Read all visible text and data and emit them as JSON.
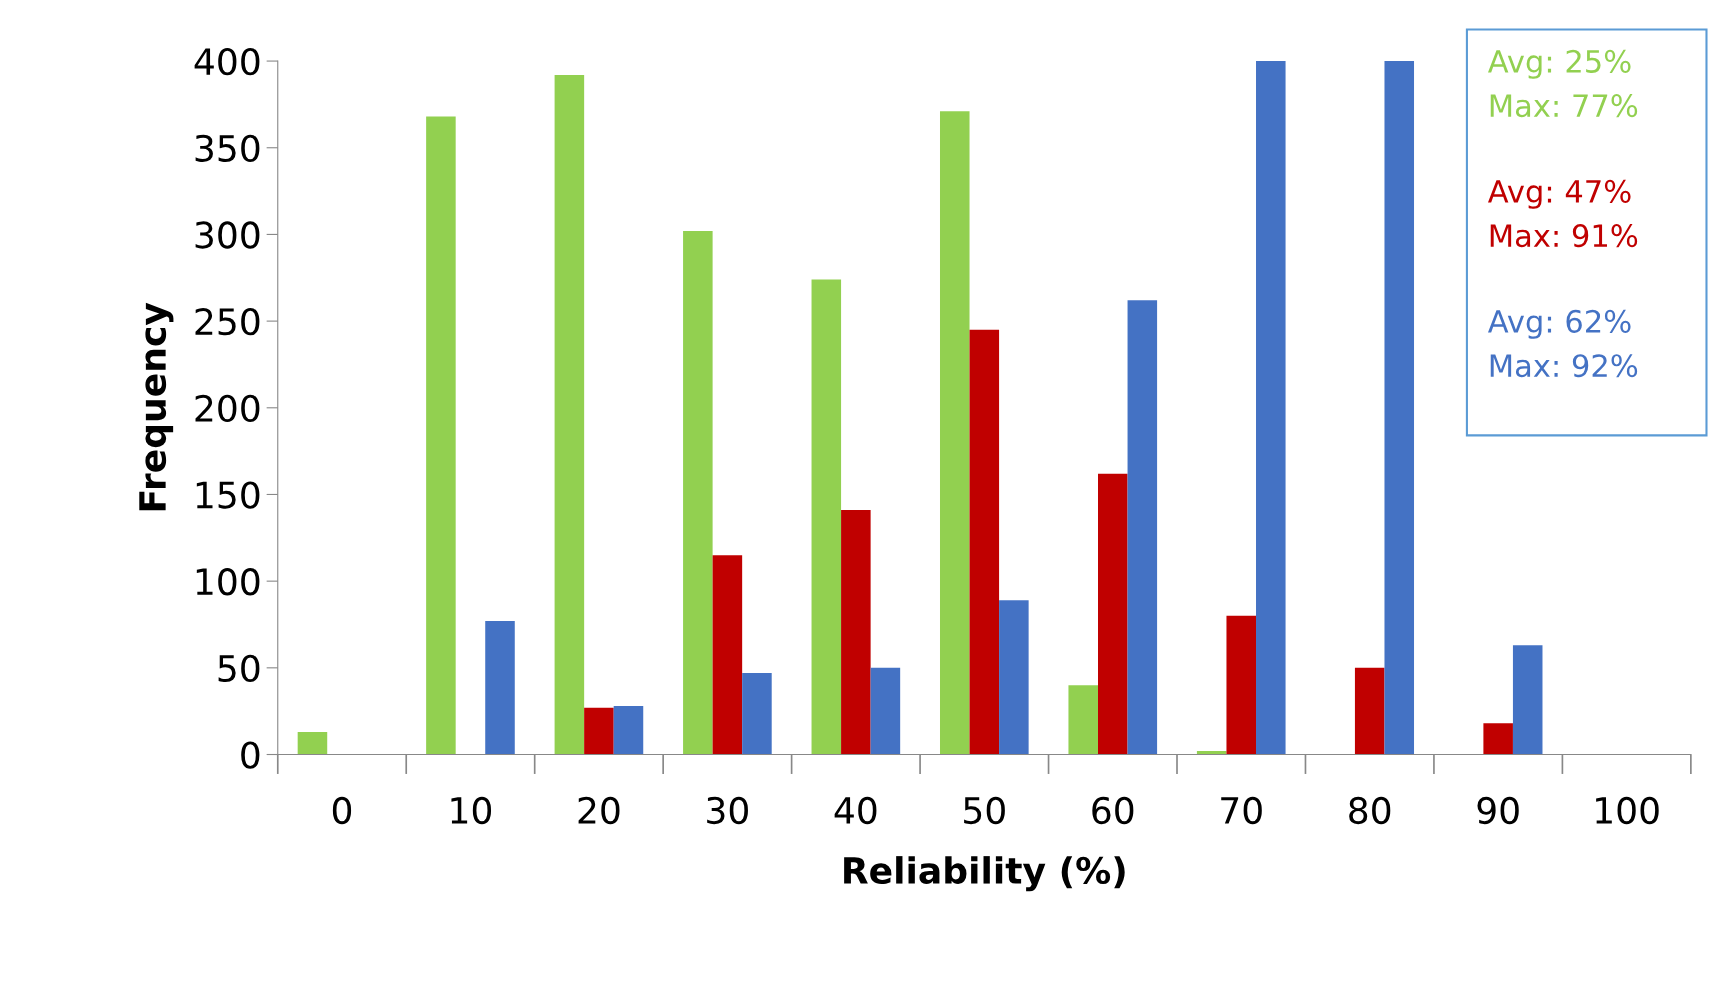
{
  "chart_data": {
    "type": "bar",
    "xlabel": "Reliability (%)",
    "ylabel": "Frequency",
    "categories": [
      "0",
      "10",
      "20",
      "30",
      "40",
      "50",
      "60",
      "70",
      "80",
      "90",
      "100"
    ],
    "series": [
      {
        "color": "#92d050",
        "values": [
          13,
          368,
          392,
          302,
          274,
          371,
          40,
          2,
          0,
          0,
          0
        ]
      },
      {
        "color": "#c00000",
        "values": [
          0,
          0,
          27,
          115,
          141,
          245,
          162,
          80,
          50,
          18,
          0
        ]
      },
      {
        "color": "#4472c4",
        "values": [
          0,
          77,
          28,
          47,
          50,
          89,
          262,
          400,
          400,
          63,
          0
        ]
      }
    ],
    "ylim": [
      0,
      400
    ],
    "yticks": [
      0,
      50,
      100,
      150,
      200,
      250,
      300,
      350,
      400
    ],
    "grid": false,
    "legend": false,
    "annotations": [
      "Avg: 25%",
      "Max: 77%",
      "Avg: 47%",
      "Max: 91%",
      "Avg: 62%",
      "Max: 92%"
    ]
  }
}
